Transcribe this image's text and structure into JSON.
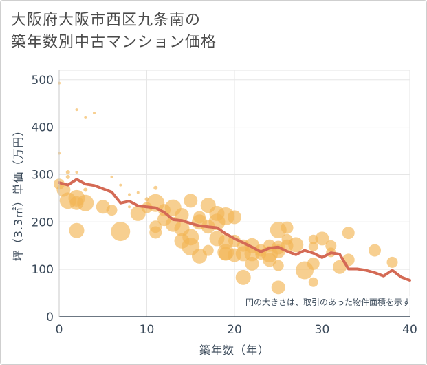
{
  "title_line1": "大阪府大阪市西区九条南の",
  "title_line2": "築年数別中古マンション価格",
  "chart_data": {
    "type": "scatter",
    "title": "大阪府大阪市西区九条南の築年数別中古マンション価格",
    "xlabel": "築年数（年）",
    "ylabel": "坪（3.3㎡）単価（万円）",
    "xlim": [
      0,
      40
    ],
    "ylim": [
      0,
      520
    ],
    "xticks": [
      0,
      10,
      20,
      30,
      40
    ],
    "yticks": [
      0,
      100,
      200,
      300,
      400,
      500
    ],
    "grid": true,
    "note": "円の大きさは、取引のあった物件面積を示す",
    "colors": {
      "bubble": "#f2b554",
      "line": "#d46a55"
    },
    "scatter": [
      {
        "x": 0,
        "y": 493,
        "s": 2
      },
      {
        "x": 0,
        "y": 345,
        "s": 2
      },
      {
        "x": 0,
        "y": 280,
        "s": 8
      },
      {
        "x": 0.5,
        "y": 268,
        "s": 10
      },
      {
        "x": 1,
        "y": 305,
        "s": 3
      },
      {
        "x": 1,
        "y": 295,
        "s": 3
      },
      {
        "x": 1,
        "y": 245,
        "s": 12
      },
      {
        "x": 2,
        "y": 437,
        "s": 2
      },
      {
        "x": 2,
        "y": 305,
        "s": 2
      },
      {
        "x": 2,
        "y": 250,
        "s": 12
      },
      {
        "x": 2,
        "y": 240,
        "s": 10
      },
      {
        "x": 2,
        "y": 182,
        "s": 11
      },
      {
        "x": 3,
        "y": 420,
        "s": 2
      },
      {
        "x": 3,
        "y": 268,
        "s": 3
      },
      {
        "x": 3,
        "y": 240,
        "s": 12
      },
      {
        "x": 4,
        "y": 430,
        "s": 2
      },
      {
        "x": 5,
        "y": 232,
        "s": 10
      },
      {
        "x": 6,
        "y": 295,
        "s": 2
      },
      {
        "x": 6,
        "y": 225,
        "s": 8
      },
      {
        "x": 7,
        "y": 278,
        "s": 2
      },
      {
        "x": 7,
        "y": 180,
        "s": 14
      },
      {
        "x": 8,
        "y": 258,
        "s": 2
      },
      {
        "x": 8,
        "y": 232,
        "s": 2
      },
      {
        "x": 9,
        "y": 262,
        "s": 2
      },
      {
        "x": 9,
        "y": 218,
        "s": 11
      },
      {
        "x": 10,
        "y": 248,
        "s": 3
      },
      {
        "x": 10,
        "y": 230,
        "s": 8
      },
      {
        "x": 11,
        "y": 272,
        "s": 3
      },
      {
        "x": 11,
        "y": 240,
        "s": 13
      },
      {
        "x": 11,
        "y": 190,
        "s": 9
      },
      {
        "x": 11,
        "y": 178,
        "s": 9
      },
      {
        "x": 12,
        "y": 225,
        "s": 9
      },
      {
        "x": 12,
        "y": 206,
        "s": 10
      },
      {
        "x": 13,
        "y": 230,
        "s": 12
      },
      {
        "x": 13,
        "y": 195,
        "s": 11
      },
      {
        "x": 14,
        "y": 215,
        "s": 10
      },
      {
        "x": 14,
        "y": 186,
        "s": 11
      },
      {
        "x": 14,
        "y": 160,
        "s": 11
      },
      {
        "x": 15,
        "y": 245,
        "s": 10
      },
      {
        "x": 15,
        "y": 168,
        "s": 12
      },
      {
        "x": 15,
        "y": 148,
        "s": 13
      },
      {
        "x": 16,
        "y": 210,
        "s": 9
      },
      {
        "x": 16,
        "y": 200,
        "s": 11
      },
      {
        "x": 16,
        "y": 128,
        "s": 11
      },
      {
        "x": 17,
        "y": 235,
        "s": 11
      },
      {
        "x": 17,
        "y": 190,
        "s": 10
      },
      {
        "x": 17,
        "y": 140,
        "s": 8
      },
      {
        "x": 18,
        "y": 218,
        "s": 11
      },
      {
        "x": 18,
        "y": 200,
        "s": 12
      },
      {
        "x": 18,
        "y": 165,
        "s": 11
      },
      {
        "x": 19,
        "y": 212,
        "s": 13
      },
      {
        "x": 19,
        "y": 158,
        "s": 11
      },
      {
        "x": 19,
        "y": 136,
        "s": 12
      },
      {
        "x": 19,
        "y": 133,
        "s": 10
      },
      {
        "x": 20,
        "y": 210,
        "s": 10
      },
      {
        "x": 20,
        "y": 160,
        "s": 9
      },
      {
        "x": 20,
        "y": 130,
        "s": 10
      },
      {
        "x": 21,
        "y": 150,
        "s": 9
      },
      {
        "x": 21,
        "y": 133,
        "s": 11
      },
      {
        "x": 21,
        "y": 83,
        "s": 11
      },
      {
        "x": 22,
        "y": 150,
        "s": 11
      },
      {
        "x": 22,
        "y": 133,
        "s": 11
      },
      {
        "x": 22,
        "y": 112,
        "s": 10
      },
      {
        "x": 23,
        "y": 140,
        "s": 9
      },
      {
        "x": 23,
        "y": 132,
        "s": 8
      },
      {
        "x": 24,
        "y": 150,
        "s": 9
      },
      {
        "x": 24,
        "y": 132,
        "s": 12
      },
      {
        "x": 24,
        "y": 120,
        "s": 10
      },
      {
        "x": 25,
        "y": 183,
        "s": 12
      },
      {
        "x": 25,
        "y": 146,
        "s": 10
      },
      {
        "x": 25,
        "y": 138,
        "s": 10
      },
      {
        "x": 25,
        "y": 108,
        "s": 8
      },
      {
        "x": 25,
        "y": 62,
        "s": 10
      },
      {
        "x": 26,
        "y": 188,
        "s": 9
      },
      {
        "x": 26,
        "y": 163,
        "s": 8
      },
      {
        "x": 26,
        "y": 150,
        "s": 9
      },
      {
        "x": 27,
        "y": 152,
        "s": 11
      },
      {
        "x": 28,
        "y": 98,
        "s": 13
      },
      {
        "x": 29,
        "y": 163,
        "s": 7
      },
      {
        "x": 29,
        "y": 148,
        "s": 7
      },
      {
        "x": 29,
        "y": 112,
        "s": 9
      },
      {
        "x": 29,
        "y": 73,
        "s": 7
      },
      {
        "x": 30,
        "y": 165,
        "s": 10
      },
      {
        "x": 31,
        "y": 150,
        "s": 8
      },
      {
        "x": 31,
        "y": 136,
        "s": 7
      },
      {
        "x": 32,
        "y": 105,
        "s": 10
      },
      {
        "x": 33,
        "y": 177,
        "s": 9
      },
      {
        "x": 33,
        "y": 120,
        "s": 9
      },
      {
        "x": 36,
        "y": 140,
        "s": 9
      },
      {
        "x": 38,
        "y": 115,
        "s": 8
      }
    ],
    "line": [
      {
        "x": 0,
        "y": 283
      },
      {
        "x": 1,
        "y": 278
      },
      {
        "x": 2,
        "y": 290
      },
      {
        "x": 3,
        "y": 280
      },
      {
        "x": 4,
        "y": 277
      },
      {
        "x": 5,
        "y": 270
      },
      {
        "x": 6,
        "y": 263
      },
      {
        "x": 7,
        "y": 240
      },
      {
        "x": 8,
        "y": 244
      },
      {
        "x": 9,
        "y": 234
      },
      {
        "x": 10,
        "y": 232
      },
      {
        "x": 11,
        "y": 230
      },
      {
        "x": 12,
        "y": 220
      },
      {
        "x": 13,
        "y": 205
      },
      {
        "x": 14,
        "y": 203
      },
      {
        "x": 15,
        "y": 197
      },
      {
        "x": 16,
        "y": 192
      },
      {
        "x": 17,
        "y": 190
      },
      {
        "x": 18,
        "y": 188
      },
      {
        "x": 19,
        "y": 175
      },
      {
        "x": 20,
        "y": 165
      },
      {
        "x": 21,
        "y": 156
      },
      {
        "x": 22,
        "y": 147
      },
      {
        "x": 23,
        "y": 137
      },
      {
        "x": 24,
        "y": 145
      },
      {
        "x": 25,
        "y": 147
      },
      {
        "x": 26,
        "y": 138
      },
      {
        "x": 27,
        "y": 131
      },
      {
        "x": 28,
        "y": 140
      },
      {
        "x": 29,
        "y": 134
      },
      {
        "x": 30,
        "y": 125
      },
      {
        "x": 31,
        "y": 135
      },
      {
        "x": 32,
        "y": 132
      },
      {
        "x": 33,
        "y": 101
      },
      {
        "x": 34,
        "y": 101
      },
      {
        "x": 35,
        "y": 98
      },
      {
        "x": 36,
        "y": 93
      },
      {
        "x": 37,
        "y": 86
      },
      {
        "x": 38,
        "y": 98
      },
      {
        "x": 39,
        "y": 84
      },
      {
        "x": 40,
        "y": 77
      }
    ]
  }
}
